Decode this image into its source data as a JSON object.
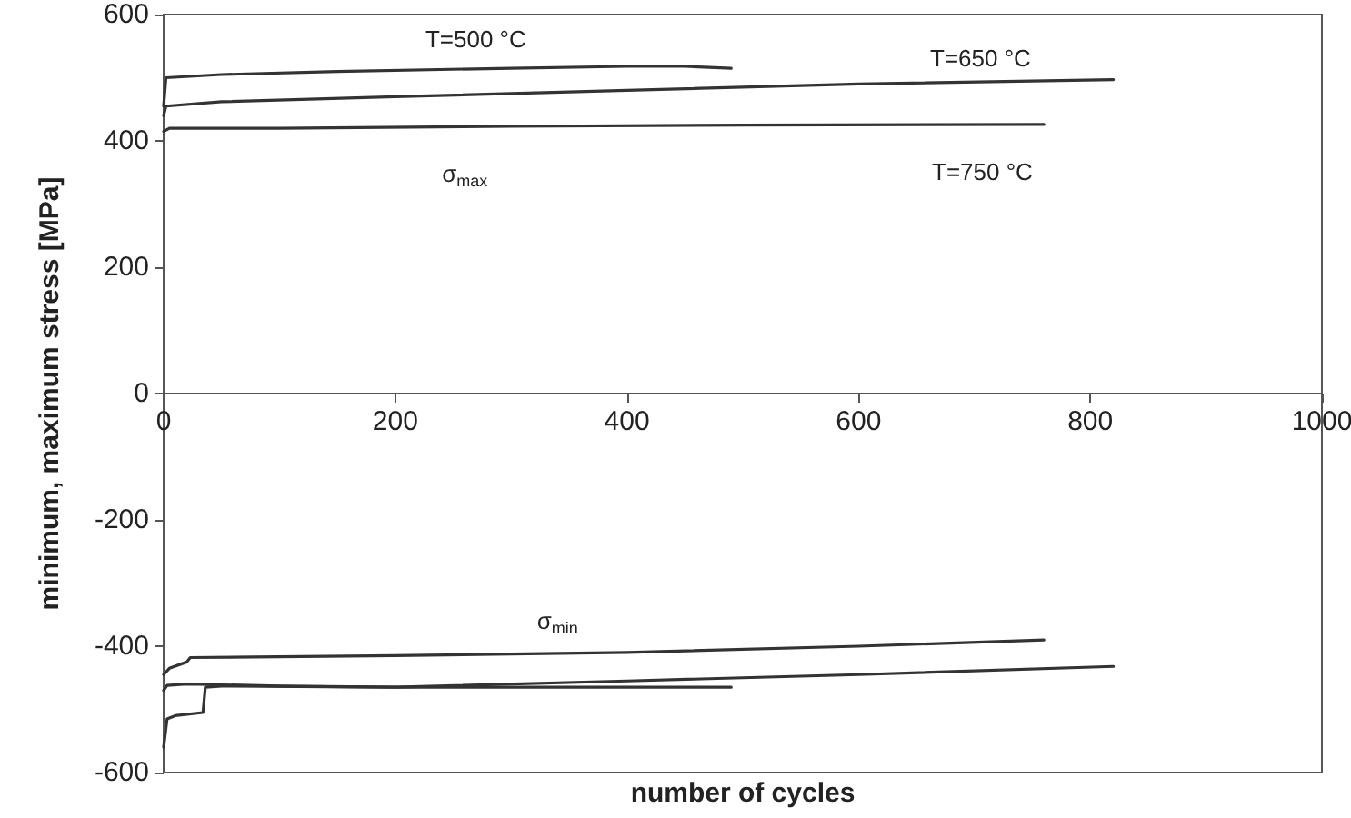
{
  "chart_data": {
    "type": "line",
    "xlabel": "number of cycles",
    "ylabel": "minimum, maximum stress [MPa]",
    "xlim": [
      0,
      1000
    ],
    "xticks": [
      0,
      200,
      400,
      600,
      800,
      1000
    ],
    "ylim": [
      -600,
      600
    ],
    "yticks": [
      -600,
      -400,
      -200,
      0,
      200,
      400,
      600
    ],
    "grid": false,
    "legend": false,
    "marker": "none",
    "line_style": "solid",
    "series": [
      {
        "name": "T=500 °C",
        "color": "#333333",
        "x": [
          0,
          2,
          50,
          150,
          300,
          400,
          450,
          490
        ],
        "values": [
          455,
          500,
          505,
          510,
          515,
          518,
          518,
          515
        ]
      },
      {
        "name": "T=650 °C",
        "color": "#333333",
        "x": [
          0,
          2,
          50,
          200,
          400,
          600,
          820
        ],
        "values": [
          440,
          455,
          462,
          470,
          480,
          490,
          497
        ]
      },
      {
        "name": "T=750 °C",
        "color": "#333333",
        "x": [
          0,
          5,
          100,
          300,
          500,
          760
        ],
        "values": [
          415,
          420,
          420,
          423,
          425,
          426
        ]
      },
      {
        "color": "#333333",
        "x": [
          0,
          5,
          20,
          23,
          200,
          400,
          600,
          760
        ],
        "values": [
          -445,
          -435,
          -425,
          -418,
          -415,
          -410,
          -400,
          -390
        ]
      },
      {
        "color": "#333333",
        "x": [
          0,
          3,
          20,
          100,
          200,
          400,
          600,
          820
        ],
        "values": [
          -470,
          -462,
          -460,
          -463,
          -465,
          -455,
          -445,
          -432
        ]
      },
      {
        "color": "#333333",
        "x": [
          0,
          3,
          10,
          34,
          36,
          50,
          200,
          490
        ],
        "values": [
          -560,
          -515,
          -510,
          -505,
          -465,
          -463,
          -465,
          -465
        ]
      }
    ],
    "annotations": [
      "σ$_{max}$",
      "σ$_{min}$"
    ]
  }
}
